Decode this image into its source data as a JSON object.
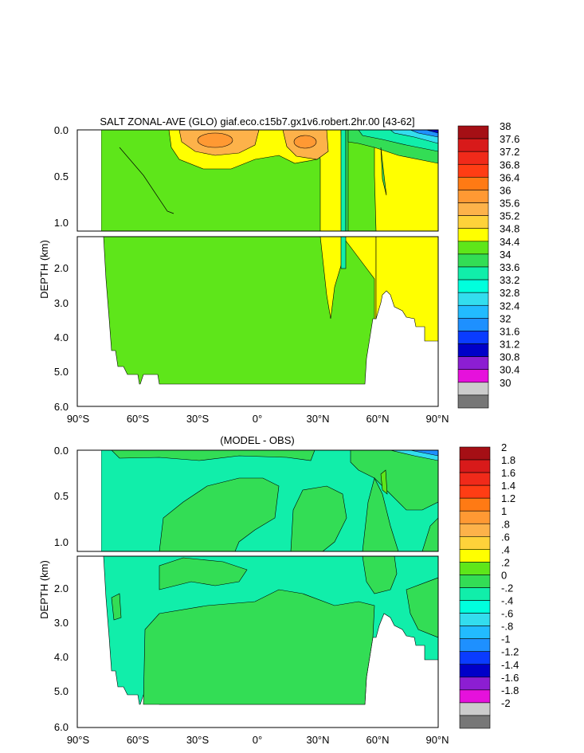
{
  "chart_data": [
    {
      "type": "contour",
      "title": "SALT ZONAL-AVE (GLO) giaf.eco.c15b7.gx1v6.robert.2hr.00 [43-62]",
      "ylabel": "DEPTH (km)",
      "x_ticks": [
        "90°S",
        "60°S",
        "30°S",
        "0°",
        "30°N",
        "60°N",
        "90°N"
      ],
      "x_tick_values": [
        -90,
        -60,
        -30,
        0,
        30,
        60,
        90
      ],
      "upper_y_ticks": [
        "0.0",
        "0.5",
        "1.0"
      ],
      "upper_y_tick_values": [
        0,
        0.5,
        1.0
      ],
      "upper_ylim": [
        0,
        1.1
      ],
      "lower_y_ticks": [
        "2.0",
        "3.0",
        "4.0",
        "5.0",
        "6.0"
      ],
      "lower_y_tick_values": [
        2,
        3,
        4,
        5,
        6
      ],
      "lower_ylim": [
        1.1,
        6.0
      ],
      "colorbar_labels": [
        "38",
        "37.6",
        "37.2",
        "36.8",
        "36.4",
        "36",
        "35.6",
        "35.2",
        "34.8",
        "34.4",
        "34",
        "33.6",
        "33.2",
        "32.8",
        "32.4",
        "32",
        "31.6",
        "31.2",
        "30.8",
        "30.4",
        "30"
      ],
      "colorbar_colors": [
        "#a50f15",
        "#d81a1a",
        "#f02a1a",
        "#ff3d14",
        "#ff7a14",
        "#ff9933",
        "#fdb24a",
        "#fed23a",
        "#ffff00",
        "#5ee61a",
        "#33dd55",
        "#11eeaa",
        "#00ffdd",
        "#33ddee",
        "#22bbff",
        "#1e90ff",
        "#0a3cff",
        "#0000c8",
        "#8c1ed2",
        "#e611dc",
        "#cccccc",
        "#777777"
      ],
      "dominant_value_range": "34.4-34.8",
      "max_region": "subtropical upper ocean ~36"
    },
    {
      "type": "contour",
      "title": "(MODEL - OBS)",
      "ylabel": "DEPTH (km)",
      "x_ticks": [
        "90°S",
        "60°S",
        "30°S",
        "0°",
        "30°N",
        "60°N",
        "90°N"
      ],
      "x_tick_values": [
        -90,
        -60,
        -30,
        0,
        30,
        60,
        90
      ],
      "upper_y_ticks": [
        "0.0",
        "0.5",
        "1.0"
      ],
      "upper_y_tick_values": [
        0,
        0.5,
        1.0
      ],
      "upper_ylim": [
        0,
        1.1
      ],
      "lower_y_ticks": [
        "2.0",
        "3.0",
        "4.0",
        "5.0",
        "6.0"
      ],
      "lower_y_tick_values": [
        2,
        3,
        4,
        5,
        6
      ],
      "lower_ylim": [
        1.1,
        6.0
      ],
      "colorbar_labels": [
        "2",
        "1.8",
        "1.6",
        "1.4",
        "1.2",
        "1",
        ".8",
        ".6",
        ".4",
        ".2",
        "0",
        "-.2",
        "-.4",
        "-.6",
        "-.8",
        "-1",
        "-1.2",
        "-1.4",
        "-1.6",
        "-1.8",
        "-2"
      ],
      "colorbar_colors": [
        "#a50f15",
        "#d81a1a",
        "#f02a1a",
        "#ff3d14",
        "#ff7a14",
        "#ff9933",
        "#fdb24a",
        "#fed23a",
        "#ffff00",
        "#5ee61a",
        "#33dd55",
        "#11eeaa",
        "#00ffdd",
        "#33ddee",
        "#22bbff",
        "#1e90ff",
        "#0a3cff",
        "#0000c8",
        "#8c1ed2",
        "#e611dc",
        "#cccccc",
        "#777777"
      ],
      "dominant_value_range": "-0.2 to 0.2"
    }
  ]
}
